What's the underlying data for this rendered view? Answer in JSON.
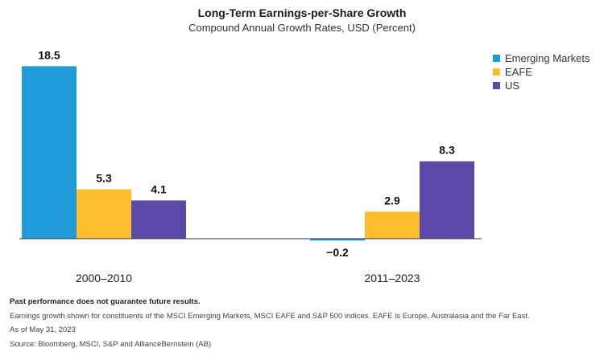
{
  "colors": {
    "emerging": "#1f9bd7",
    "eafe": "#fbbf2c",
    "us": "#5b48a7",
    "axis": "#333333"
  },
  "chart_data": {
    "type": "bar",
    "title": "Long-Term Earnings-per-Share Growth",
    "subtitle": "Compound Annual Growth Rates, USD (Percent)",
    "categories": [
      "2000–2010",
      "2011–2023"
    ],
    "series": [
      {
        "name": "Emerging Markets",
        "values": [
          18.5,
          -0.2
        ],
        "labels": [
          "18.5",
          "−0.2"
        ]
      },
      {
        "name": "EAFE",
        "values": [
          5.3,
          2.9
        ],
        "labels": [
          "5.3",
          "2.9"
        ]
      },
      {
        "name": "US",
        "values": [
          4.1,
          8.3
        ],
        "labels": [
          "4.1",
          "8.3"
        ]
      }
    ],
    "ylim": [
      -0.2,
      18.5
    ],
    "grid": false,
    "legend": "top-right"
  },
  "notes": {
    "disclaimer": "Past performance does not guarantee future results.",
    "description": "Earnings growth shown for constituents of the MSCI Emerging Markets, MSCI EAFE and S&P 500 indices. EAFE is Europe, Australasia and the Far East.",
    "date": "As of May 31, 2023",
    "source": "Source: Bloomberg, MSCI, S&P and AllianceBernstein (AB)"
  }
}
